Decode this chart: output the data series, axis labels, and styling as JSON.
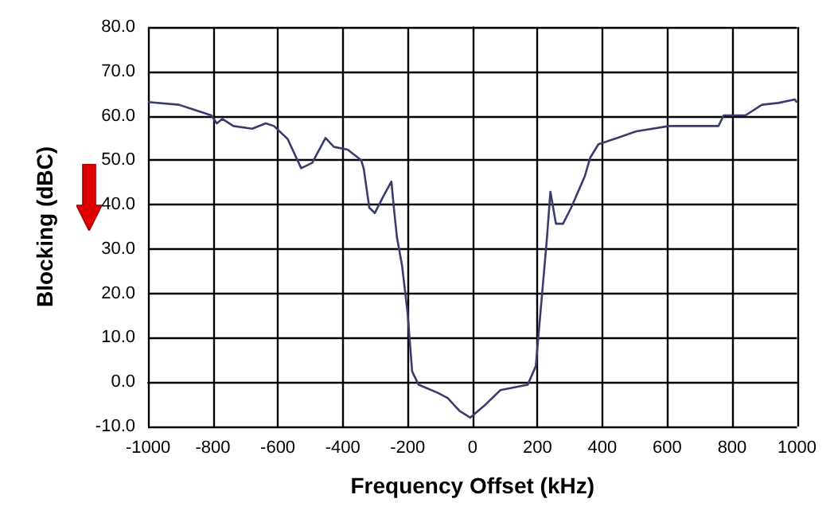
{
  "chart_data": {
    "type": "line",
    "xlabel": "Frequency Offset (kHz)",
    "ylabel": "Blocking (dBC)",
    "x": [
      -1000,
      -905,
      -855,
      -805,
      -788,
      -771,
      -737,
      -679,
      -637,
      -612,
      -570,
      -528,
      -494,
      -453,
      -427,
      -385,
      -343,
      -335,
      -318,
      -301,
      -276,
      -250,
      -242,
      -233,
      -217,
      -200,
      -186,
      -166,
      -107,
      -76,
      -40,
      -7,
      35,
      86,
      170,
      195,
      212,
      229,
      240,
      257,
      279,
      304,
      346,
      363,
      388,
      438,
      505,
      606,
      758,
      774,
      841,
      892,
      942,
      993,
      1000
    ],
    "series": [
      {
        "color": "#3a3d6b",
        "values": [
          63.1,
          62.5,
          61.3,
          60.1,
          58.3,
          59.3,
          57.7,
          57.1,
          58.3,
          57.7,
          54.8,
          48.2,
          49.4,
          55,
          53,
          52.4,
          50,
          48,
          39.3,
          38.1,
          41.7,
          45.2,
          39,
          32.7,
          26.2,
          15.5,
          2.4,
          -0.6,
          -2.4,
          -3.6,
          -6.5,
          -8,
          -5.4,
          -1.8,
          -0.6,
          3.6,
          17.9,
          32.1,
          42.9,
          35.7,
          35.7,
          39.3,
          46.4,
          50.6,
          53.6,
          54.8,
          56.5,
          57.7,
          57.7,
          60.1,
          60.1,
          62.5,
          62.9,
          63.7,
          63
        ]
      }
    ],
    "xlim": [
      -1000,
      1000
    ],
    "xticks": [
      -1000,
      -800,
      -600,
      -400,
      -200,
      0,
      200,
      400,
      600,
      800,
      1000
    ],
    "ylim": [
      -10,
      80
    ],
    "yticks": [
      {
        "value": -10,
        "label": "-10.0"
      },
      {
        "value": 0,
        "label": "0.0"
      },
      {
        "value": 10,
        "label": "10.0"
      },
      {
        "value": 20,
        "label": "20.0"
      },
      {
        "value": 30,
        "label": "30.0"
      },
      {
        "value": 40,
        "label": "40.0"
      },
      {
        "value": 50,
        "label": "50.0"
      },
      {
        "value": 60,
        "label": "60.0"
      },
      {
        "value": 70,
        "label": "70.0"
      },
      {
        "value": 80,
        "label": "80.0"
      }
    ],
    "grid": true,
    "marker": "none",
    "line_style": "solid"
  }
}
